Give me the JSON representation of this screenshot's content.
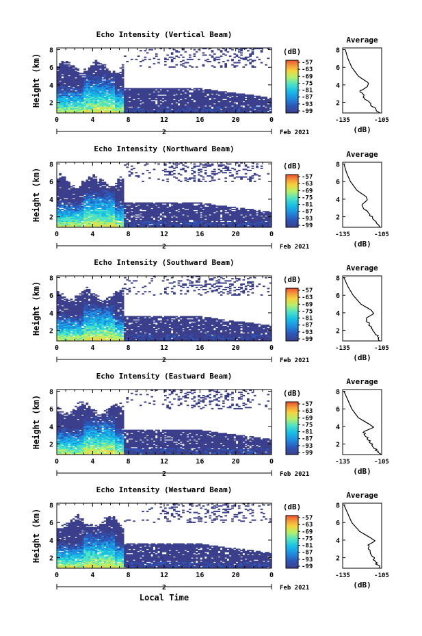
{
  "colors": {
    "background": "#ffffff",
    "echo_base": "#3b3f8c",
    "colormap": [
      "#3b3f8c",
      "#2c57b8",
      "#1f8fe0",
      "#18c0e6",
      "#4fe3c4",
      "#b5f06a",
      "#f5d43c",
      "#f59a3a",
      "#e8502e"
    ]
  },
  "shared": {
    "y_axis_label": "Height (km)",
    "x_axis_title": "Local Time",
    "date_day": "2",
    "date_suffix": "Feb 2021",
    "unit_label": "(dB)",
    "avg_title": "Average",
    "avg_unit": "(dB)",
    "colorbar_ticks": [
      "-57",
      "-63",
      "-69",
      "-75",
      "-81",
      "-87",
      "-93",
      "-99"
    ]
  },
  "chart_data": [
    {
      "type": "heatmap",
      "title": "Echo Intensity (Vertical Beam)",
      "xlabel": "",
      "ylabel": "Height (km)",
      "x_ticks": [
        "0",
        "4",
        "8",
        "12",
        "16",
        "20",
        "0"
      ],
      "y_ticks": [
        "2",
        "4",
        "6",
        "8"
      ],
      "xlim": [
        0,
        24
      ],
      "ylim": [
        0.8,
        8.2
      ],
      "color_range_db": [
        -99,
        -57
      ],
      "profile": {
        "title": "Average",
        "xlabel": "(dB)",
        "x_ticks": [
          "-135",
          "-105"
        ],
        "y_ticks": [
          "2",
          "4",
          "6",
          "8"
        ],
        "height": [
          0.8,
          1.5,
          2.5,
          3.3,
          3.8,
          4.2,
          5.0,
          6.0,
          7.0,
          8.0
        ],
        "value": [
          -106,
          -112,
          -118,
          -121,
          -116,
          -115,
          -123,
          -128,
          -131,
          -133
        ]
      }
    },
    {
      "type": "heatmap",
      "title": "Echo Intensity (Northward Beam)",
      "xlabel": "",
      "ylabel": "Height (km)",
      "x_ticks": [
        "0",
        "4",
        "8",
        "12",
        "16",
        "20",
        "0"
      ],
      "y_ticks": [
        "2",
        "4",
        "6",
        "8"
      ],
      "xlim": [
        0,
        24
      ],
      "ylim": [
        0.8,
        8.2
      ],
      "color_range_db": [
        -99,
        -57
      ],
      "profile": {
        "title": "Average",
        "xlabel": "(dB)",
        "x_ticks": [
          "-135",
          "-105"
        ],
        "y_ticks": [
          "2",
          "4",
          "6",
          "8"
        ],
        "height": [
          0.8,
          1.5,
          2.5,
          3.4,
          3.9,
          4.3,
          5.0,
          6.0,
          7.0,
          8.0
        ],
        "value": [
          -106,
          -110,
          -116,
          -120,
          -116,
          -117,
          -124,
          -129,
          -132,
          -134
        ]
      }
    },
    {
      "type": "heatmap",
      "title": "Echo Intensity (Southward Beam)",
      "xlabel": "",
      "ylabel": "Height (km)",
      "x_ticks": [
        "0",
        "4",
        "8",
        "12",
        "16",
        "20",
        "0"
      ],
      "y_ticks": [
        "2",
        "4",
        "6",
        "8"
      ],
      "xlim": [
        0,
        24
      ],
      "ylim": [
        0.8,
        8.2
      ],
      "color_range_db": [
        -99,
        -57
      ],
      "profile": {
        "title": "Average",
        "xlabel": "(dB)",
        "x_ticks": [
          "-135",
          "-105"
        ],
        "y_ticks": [
          "2",
          "4",
          "6",
          "8"
        ],
        "height": [
          0.8,
          1.5,
          2.5,
          3.4,
          3.9,
          4.3,
          5.0,
          6.0,
          7.0,
          8.0
        ],
        "value": [
          -106,
          -109,
          -114,
          -117,
          -111,
          -113,
          -121,
          -127,
          -131,
          -134
        ]
      }
    },
    {
      "type": "heatmap",
      "title": "Echo Intensity (Eastward Beam)",
      "xlabel": "",
      "ylabel": "Height (km)",
      "x_ticks": [
        "0",
        "4",
        "8",
        "12",
        "16",
        "20",
        "0"
      ],
      "y_ticks": [
        "2",
        "4",
        "6",
        "8"
      ],
      "xlim": [
        0,
        24
      ],
      "ylim": [
        0.8,
        8.2
      ],
      "color_range_db": [
        -99,
        -57
      ],
      "profile": {
        "title": "Average",
        "xlabel": "(dB)",
        "x_ticks": [
          "-135",
          "-105"
        ],
        "y_ticks": [
          "2",
          "4",
          "6",
          "8"
        ],
        "height": [
          0.8,
          1.5,
          2.5,
          3.4,
          3.9,
          4.3,
          5.0,
          6.0,
          7.0,
          8.0
        ],
        "value": [
          -106,
          -110,
          -115,
          -119,
          -111,
          -115,
          -123,
          -128,
          -131,
          -134
        ]
      }
    },
    {
      "type": "heatmap",
      "title": "Echo Intensity (Westward Beam)",
      "xlabel": "Local Time",
      "ylabel": "Height (km)",
      "x_ticks": [
        "0",
        "4",
        "8",
        "12",
        "16",
        "20",
        "0"
      ],
      "y_ticks": [
        "2",
        "4",
        "6",
        "8"
      ],
      "xlim": [
        0,
        24
      ],
      "ylim": [
        0.8,
        8.2
      ],
      "color_range_db": [
        -99,
        -57
      ],
      "profile": {
        "title": "Average",
        "xlabel": "(dB)",
        "x_ticks": [
          "-135",
          "-105"
        ],
        "y_ticks": [
          "2",
          "4",
          "6",
          "8"
        ],
        "height": [
          0.8,
          1.5,
          2.5,
          3.4,
          3.9,
          4.3,
          5.0,
          6.0,
          7.0,
          8.0
        ],
        "value": [
          -106,
          -110,
          -113,
          -116,
          -110,
          -114,
          -122,
          -128,
          -131,
          -134
        ]
      }
    }
  ]
}
